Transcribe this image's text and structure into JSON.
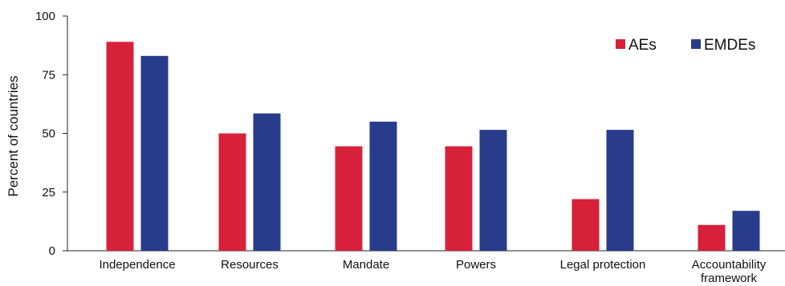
{
  "chart_data": {
    "type": "bar",
    "categories": [
      "Independence",
      "Resources",
      "Mandate",
      "Powers",
      "Legal protection",
      "Accountability framework"
    ],
    "series": [
      {
        "name": "AEs",
        "color": "#d7213b",
        "values": [
          89,
          50,
          44.5,
          44.5,
          22,
          11
        ]
      },
      {
        "name": "EMDEs",
        "color": "#283c8b",
        "values": [
          83,
          58.5,
          55,
          51.5,
          51.5,
          17
        ]
      }
    ],
    "ylabel": "Percent of countries",
    "xlabel": "",
    "ylim": [
      0,
      100
    ],
    "yticks": [
      0,
      25,
      50,
      75,
      100
    ],
    "grid": false,
    "legend_position": "top-right"
  }
}
